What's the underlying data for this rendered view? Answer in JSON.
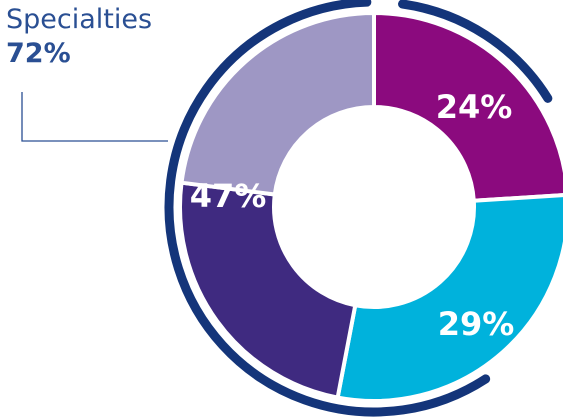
{
  "chart_data": {
    "type": "pie",
    "style": "donut",
    "slices": [
      {
        "label": "24%",
        "value": 24,
        "color": "#8b0a7e"
      },
      {
        "label": "29%",
        "value": 29,
        "color": "#00b2dc"
      },
      {
        "label": "",
        "value": 24,
        "color": "#3f2a80"
      },
      {
        "label": "",
        "value": 23,
        "color": "#9e97c4"
      }
    ],
    "group_label": "47%",
    "callout": {
      "name": "Specialties",
      "value": "72%",
      "color": "#2a4f93"
    },
    "outer_arc_color": "#14357a"
  }
}
